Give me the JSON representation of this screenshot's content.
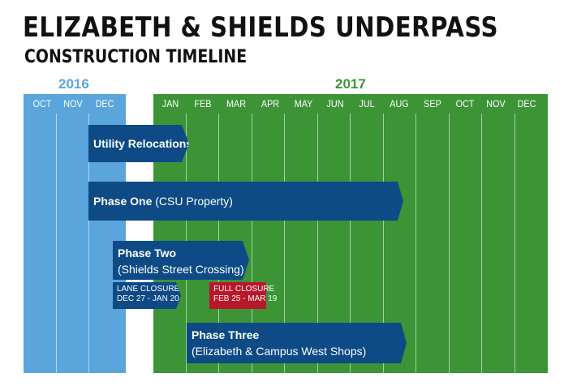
{
  "header": {
    "title": "ELIZABETH & SHIELDS UNDERPASS",
    "subtitle": "CONSTRUCTION TIMELINE"
  },
  "years": [
    {
      "label": "2016",
      "color": "#5aa5db"
    },
    {
      "label": "2017",
      "color": "#3c9437"
    }
  ],
  "months_2016": [
    "OCT",
    "NOV",
    "DEC"
  ],
  "months_2017": [
    "JAN",
    "FEB",
    "MAR",
    "APR",
    "MAY",
    "JUN",
    "JUL",
    "AUG",
    "SEP",
    "OCT",
    "NOV",
    "DEC"
  ],
  "phases": {
    "utility": {
      "title": "Utility Relocations",
      "color": "#0d4a86"
    },
    "one": {
      "title": "Phase One",
      "detail": "(CSU Property)",
      "color": "#0d4a86"
    },
    "two": {
      "title": "Phase Two",
      "detail": "(Shields Street Crossing)",
      "color": "#0d4a86"
    },
    "three": {
      "title": "Phase Three",
      "detail": "(Elizabeth & Campus West Shops)",
      "color": "#0d4a86"
    }
  },
  "closures": {
    "lane": {
      "label": "LANE CLOSURES",
      "dates": "DEC 27 - JAN 20",
      "color": "#0d4a86"
    },
    "full": {
      "label": "FULL CLOSURE",
      "dates": "FEB 25 - MAR 19",
      "color": "#b8182a"
    }
  }
}
